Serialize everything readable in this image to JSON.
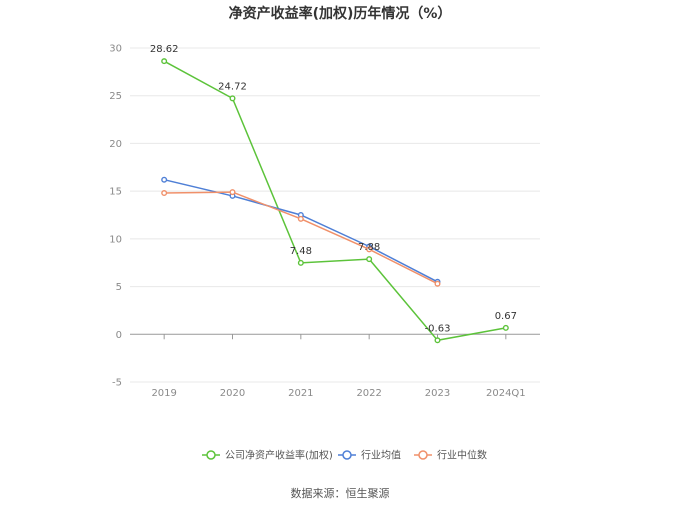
{
  "chart_data": {
    "type": "line",
    "title": "净资产收益率(加权)历年情况（%）",
    "categories": [
      "2019",
      "2020",
      "2021",
      "2022",
      "2023",
      "2024Q1"
    ],
    "ylim": [
      -5,
      30
    ],
    "yticks": [
      -5,
      0,
      5,
      10,
      15,
      20,
      25,
      30
    ],
    "grid": true,
    "legend_position": "bottom",
    "series": [
      {
        "name": "公司净资产收益率(加权)",
        "color": "#5cc33a",
        "values": [
          28.62,
          24.72,
          7.48,
          7.88,
          -0.63,
          0.67
        ],
        "labels": [
          "28.62",
          "24.72",
          "7.48",
          "7.88",
          "-0.63",
          "0.67"
        ]
      },
      {
        "name": "行业均值",
        "color": "#4e7fd6",
        "values": [
          16.2,
          14.5,
          12.5,
          9.2,
          5.5,
          null
        ]
      },
      {
        "name": "行业中位数",
        "color": "#f0906a",
        "values": [
          14.8,
          14.9,
          12.1,
          8.9,
          5.3,
          null
        ]
      }
    ],
    "source": "数据来源：恒生聚源"
  }
}
